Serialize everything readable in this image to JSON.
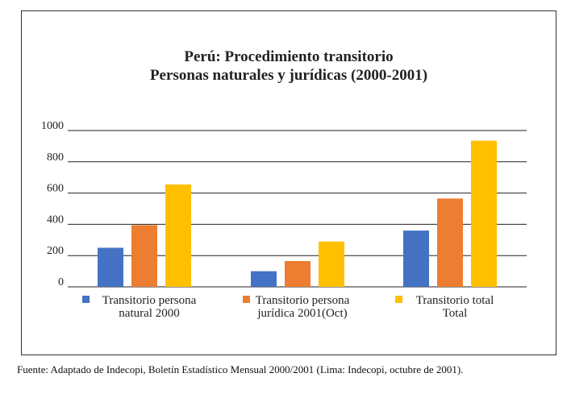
{
  "chart_data": {
    "type": "bar",
    "title_line1": "Perú: Procedimiento transitorio",
    "title_line2": "Personas naturales y jurídicas (2000-2001)",
    "ylim": [
      0,
      1000
    ],
    "yticks": [
      0,
      200,
      400,
      600,
      800,
      1000
    ],
    "grid": true,
    "groups": [
      {
        "label_lines": [
          "Transitorio persona",
          "natural 2000"
        ],
        "values": [
          250,
          395,
          655
        ]
      },
      {
        "label_lines": [
          "Transitorio persona",
          "jurídica 2001(Oct)"
        ],
        "values": [
          100,
          165,
          290
        ]
      },
      {
        "label_lines": [
          "Transitorio total",
          "Total"
        ],
        "values": [
          360,
          565,
          935
        ]
      }
    ],
    "colors": [
      "#4472c4",
      "#ed7d31",
      "#ffc000"
    ],
    "legend_colors": [
      "#4472c4",
      "#ed7d31",
      "#ffc000"
    ]
  },
  "source": "Fuente: Adaptado de Indecopi, Boletín Estadístico Mensual 2000/2001 (Lima: Indecopi, octubre de 2001)."
}
